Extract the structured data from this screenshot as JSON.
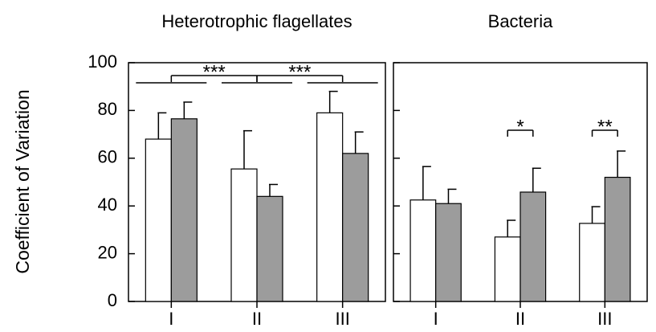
{
  "chart_data": [
    {
      "type": "bar",
      "title": "Heterotrophic flagellates",
      "ylabel": "Coefficient of Variation",
      "categories": [
        "I",
        "II",
        "III"
      ],
      "series": [
        {
          "color": "#ffffff",
          "values": [
            68,
            55.5,
            79
          ],
          "errors": [
            11,
            16,
            9
          ]
        },
        {
          "color": "#9c9c9c",
          "values": [
            76.5,
            44,
            62
          ],
          "errors": [
            7,
            5,
            9
          ]
        }
      ],
      "ylim": [
        0,
        100
      ],
      "yticks": [
        0,
        20,
        40,
        60,
        80,
        100
      ],
      "annotations": [
        "***",
        "***"
      ]
    },
    {
      "type": "bar",
      "title": "Bacteria",
      "categories": [
        "I",
        "II",
        "III"
      ],
      "series": [
        {
          "color": "#ffffff",
          "values": [
            42.5,
            27,
            32.7
          ],
          "errors": [
            14,
            7,
            7
          ]
        },
        {
          "color": "#9c9c9c",
          "values": [
            41,
            45.8,
            52
          ],
          "errors": [
            6,
            10,
            11
          ]
        }
      ],
      "ylim": [
        0,
        100
      ],
      "yticks": [
        0,
        20,
        40,
        60,
        80,
        100
      ],
      "tick_labels": false,
      "annotations": [
        "*",
        "**"
      ]
    }
  ]
}
